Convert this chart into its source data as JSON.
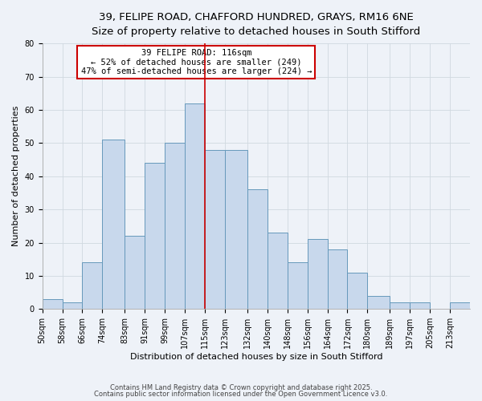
{
  "title_line1": "39, FELIPE ROAD, CHAFFORD HUNDRED, GRAYS, RM16 6NE",
  "title_line2": "Size of property relative to detached houses in South Stifford",
  "xlabel": "Distribution of detached houses by size in South Stifford",
  "ylabel": "Number of detached properties",
  "bin_labels": [
    "50sqm",
    "58sqm",
    "66sqm",
    "74sqm",
    "83sqm",
    "91sqm",
    "99sqm",
    "107sqm",
    "115sqm",
    "123sqm",
    "132sqm",
    "140sqm",
    "148sqm",
    "156sqm",
    "164sqm",
    "172sqm",
    "180sqm",
    "189sqm",
    "197sqm",
    "205sqm",
    "213sqm"
  ],
  "bin_edges": [
    50,
    58,
    66,
    74,
    83,
    91,
    99,
    107,
    115,
    123,
    132,
    140,
    148,
    156,
    164,
    172,
    180,
    189,
    197,
    205,
    213,
    221
  ],
  "bar_heights": [
    3,
    2,
    14,
    51,
    22,
    44,
    50,
    62,
    48,
    48,
    36,
    23,
    14,
    21,
    18,
    11,
    4,
    2,
    2,
    0,
    2
  ],
  "bar_color": "#c8d8ec",
  "bar_edge_color": "#6699bb",
  "vline_x": 115,
  "vline_color": "#cc0000",
  "annotation_box_text": "39 FELIPE ROAD: 116sqm\n← 52% of detached houses are smaller (249)\n47% of semi-detached houses are larger (224) →",
  "box_edge_color": "#cc0000",
  "ylim": [
    0,
    80
  ],
  "yticks": [
    0,
    10,
    20,
    30,
    40,
    50,
    60,
    70,
    80
  ],
  "grid_color": "#d0d8e0",
  "background_color": "#eef2f8",
  "footer_line1": "Contains HM Land Registry data © Crown copyright and database right 2025.",
  "footer_line2": "Contains public sector information licensed under the Open Government Licence v3.0.",
  "title_fontsize": 9.5,
  "subtitle_fontsize": 8.5,
  "axis_label_fontsize": 8,
  "tick_fontsize": 7,
  "annotation_fontsize": 7.5,
  "footer_fontsize": 6
}
